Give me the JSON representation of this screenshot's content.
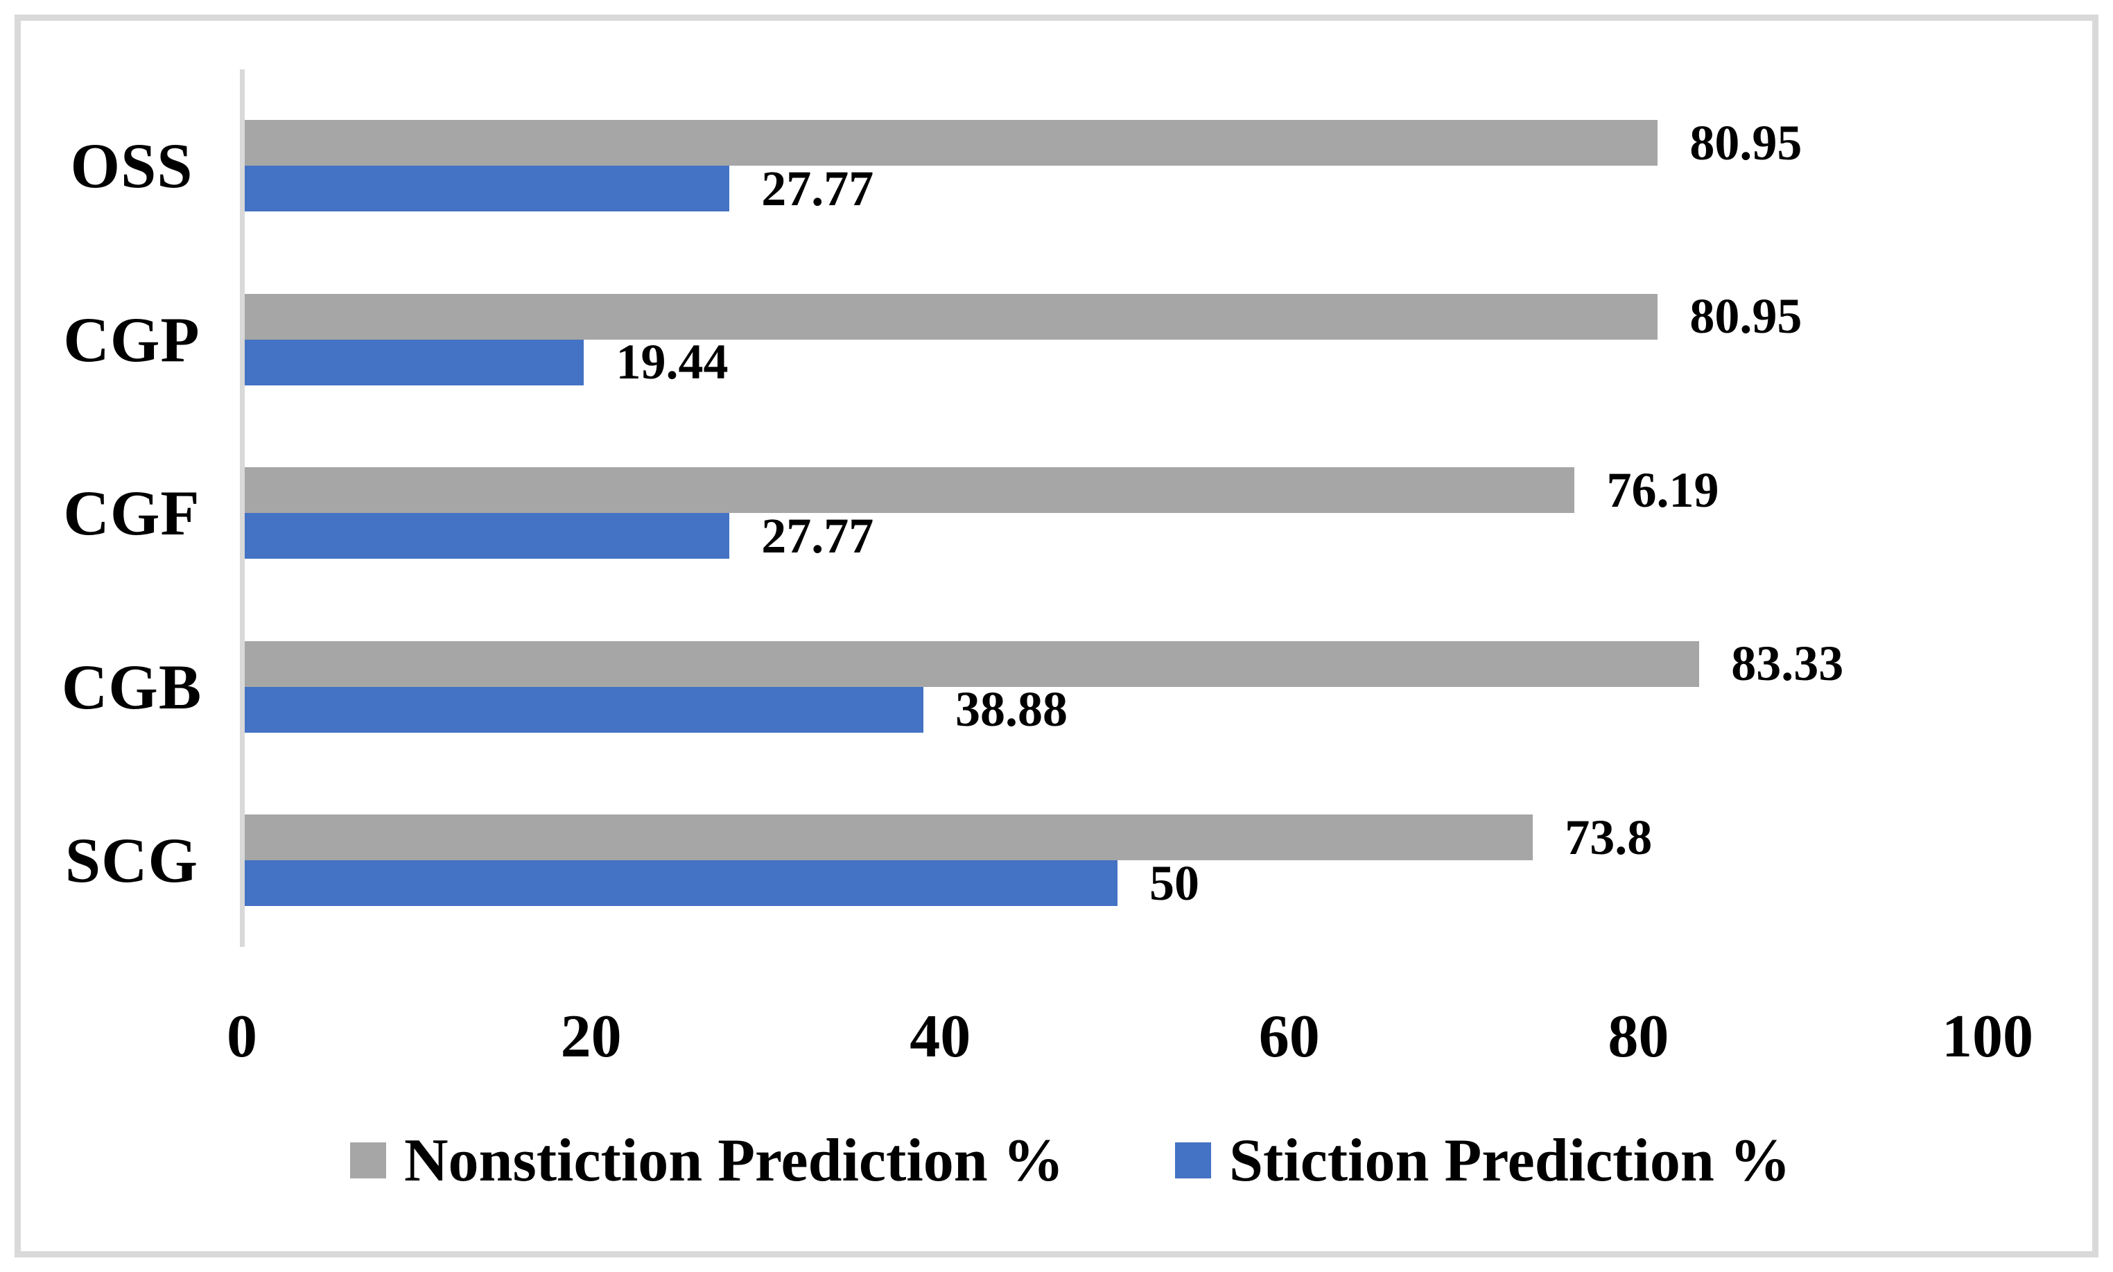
{
  "frame": {
    "background": "#ffffff",
    "border_color": "#d9d9d9",
    "axis_color": "#d9d9d9",
    "text_color": "#000000"
  },
  "chart_data": {
    "type": "bar",
    "orientation": "horizontal",
    "title": "",
    "xlabel": "",
    "ylabel": "",
    "categories": [
      "OSS",
      "CGP",
      "CGF",
      "CGB",
      "SCG"
    ],
    "series": [
      {
        "name": "Nonstiction Prediction %",
        "color": "#a6a6a6",
        "values": [
          80.95,
          80.95,
          76.19,
          83.33,
          73.8
        ]
      },
      {
        "name": "Stiction Prediction %",
        "color": "#4472c4",
        "values": [
          27.77,
          19.44,
          27.77,
          38.88,
          50
        ]
      }
    ],
    "xlim": [
      0,
      100
    ],
    "x_ticks": [
      "0",
      "20",
      "40",
      "60",
      "80",
      "100"
    ],
    "grid": false,
    "value_labels_shown": true,
    "legend_position": "bottom"
  }
}
